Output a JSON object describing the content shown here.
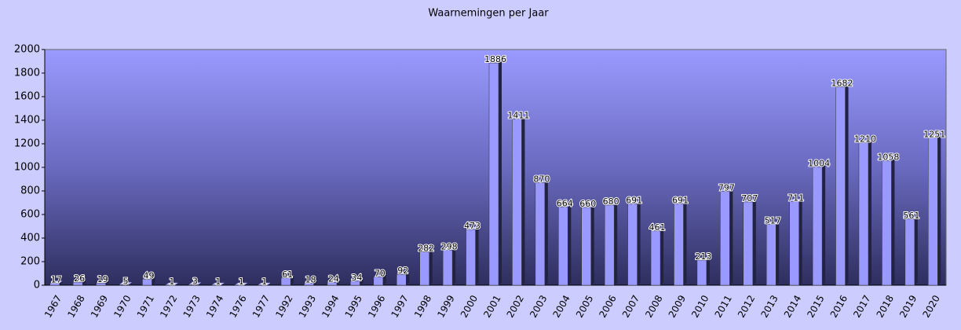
{
  "chart_data": {
    "type": "bar",
    "title": "Waarnemingen per Jaar",
    "categories": [
      "1967",
      "1968",
      "1969",
      "1970",
      "1971",
      "1972",
      "1973",
      "1974",
      "1976",
      "1977",
      "1992",
      "1993",
      "1994",
      "1995",
      "1996",
      "1997",
      "1998",
      "1999",
      "2000",
      "2001",
      "2002",
      "2003",
      "2004",
      "2005",
      "2006",
      "2007",
      "2008",
      "2009",
      "2010",
      "2011",
      "2012",
      "2013",
      "2014",
      "2015",
      "2016",
      "2017",
      "2018",
      "2019",
      "2020"
    ],
    "values": [
      17,
      26,
      19,
      5,
      49,
      1,
      3,
      1,
      1,
      1,
      61,
      18,
      24,
      34,
      70,
      92,
      282,
      298,
      473,
      1886,
      1411,
      870,
      664,
      660,
      680,
      691,
      461,
      691,
      213,
      797,
      707,
      517,
      711,
      1004,
      1682,
      1210,
      1058,
      561,
      1251
    ],
    "color": "#9999ff",
    "ylim": [
      0,
      2000
    ],
    "yticks": [
      0,
      200,
      400,
      600,
      800,
      1000,
      1200,
      1400,
      1600,
      1800,
      2000
    ],
    "grid": false
  }
}
